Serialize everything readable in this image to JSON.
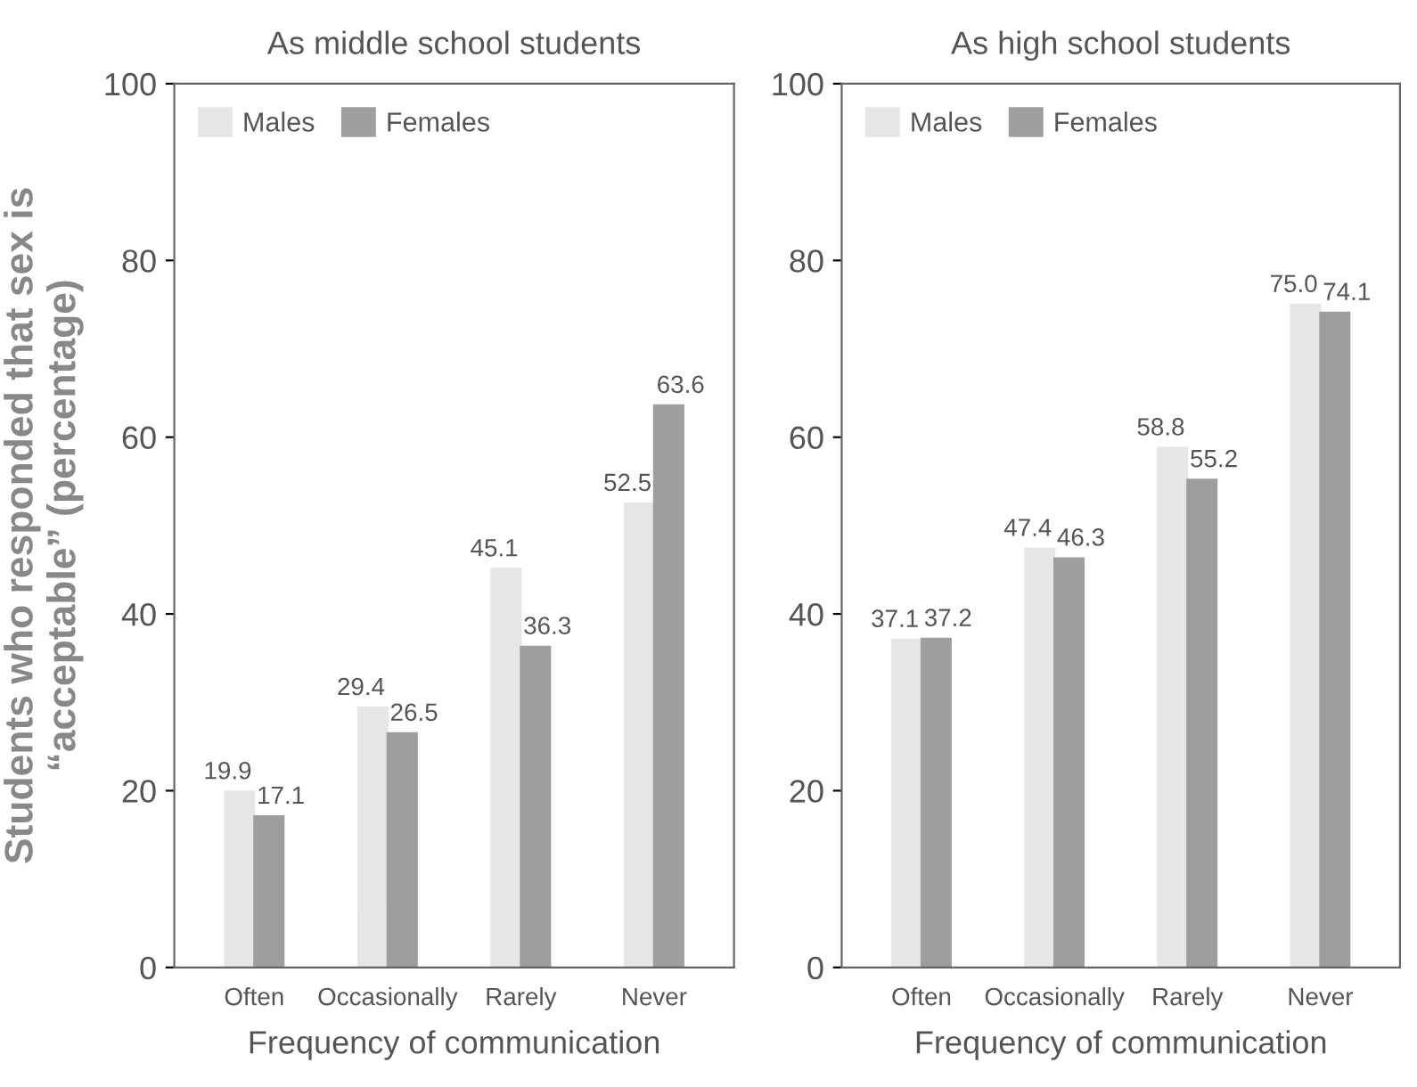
{
  "chart_data": [
    {
      "type": "bar",
      "title": "As middle school students",
      "xlabel": "Frequency of communication",
      "ylabel": "Students who responded that sex is\n“acceptable” (percentage)",
      "categories": [
        "Often",
        "Occasionally",
        "Rarely",
        "Never"
      ],
      "series": [
        {
          "name": "Males",
          "color": "#e6e6e6",
          "values": [
            19.9,
            29.4,
            45.1,
            52.5
          ],
          "value_labels": [
            "19.9",
            "29.4",
            "45.1",
            "52.5"
          ]
        },
        {
          "name": "Females",
          "color": "#9e9e9e",
          "values": [
            17.1,
            26.5,
            36.3,
            63.6
          ],
          "value_labels": [
            "17.1",
            "26.5",
            "36.3",
            "63.6"
          ]
        }
      ],
      "ylim": [
        0,
        100
      ],
      "yticks": [
        0,
        20,
        40,
        60,
        80,
        100
      ],
      "legend": "top left",
      "grid": false
    },
    {
      "type": "bar",
      "title": "As high school students",
      "xlabel": "Frequency of communication",
      "categories": [
        "Often",
        "Occasionally",
        "Rarely",
        "Never"
      ],
      "series": [
        {
          "name": "Males",
          "color": "#e6e6e6",
          "values": [
            37.1,
            47.4,
            58.8,
            75.0
          ],
          "value_labels": [
            "37.1",
            "47.4",
            "58.8",
            "75.0"
          ]
        },
        {
          "name": "Females",
          "color": "#9e9e9e",
          "values": [
            37.2,
            46.3,
            55.2,
            74.1
          ],
          "value_labels": [
            "37.2",
            "46.3",
            "55.2",
            "74.1"
          ]
        }
      ],
      "ylim": [
        0,
        100
      ],
      "yticks": [
        0,
        20,
        40,
        60,
        80,
        100
      ],
      "legend": "top left",
      "grid": false
    }
  ]
}
